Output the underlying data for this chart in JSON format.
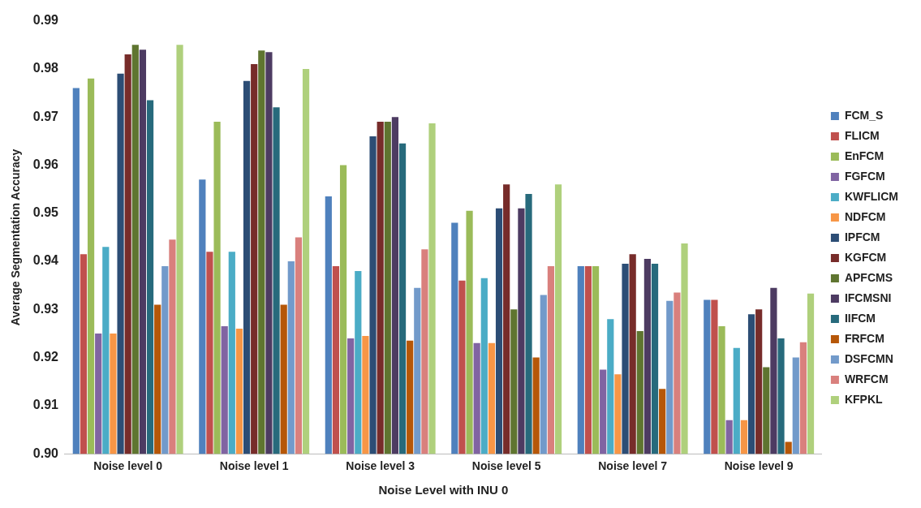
{
  "chart_data": {
    "type": "bar",
    "xlabel": "Noise Level with INU 0",
    "ylabel": "Average Segmentation Accuracy",
    "categories": [
      "Noise level 0",
      "Noise level 1",
      "Noise level 3",
      "Noise level 5",
      "Noise level 7",
      "Noise level 9"
    ],
    "series": [
      {
        "name": "FCM_S",
        "color": "#4f81bd",
        "values": [
          0.976,
          0.957,
          0.9535,
          0.948,
          0.939,
          0.932
        ]
      },
      {
        "name": "FLICM",
        "color": "#c0504d",
        "values": [
          0.9415,
          0.942,
          0.939,
          0.936,
          0.939,
          0.932
        ]
      },
      {
        "name": "EnFCM",
        "color": "#9bbb59",
        "values": [
          0.978,
          0.969,
          0.96,
          0.9505,
          0.939,
          0.9265
        ]
      },
      {
        "name": "FGFCM",
        "color": "#8064a2",
        "values": [
          0.925,
          0.9265,
          0.924,
          0.923,
          0.9175,
          0.907
        ]
      },
      {
        "name": "KWFLICM",
        "color": "#4bacc6",
        "values": [
          0.943,
          0.942,
          0.938,
          0.9365,
          0.928,
          0.922
        ]
      },
      {
        "name": "NDFCM",
        "color": "#f79646",
        "values": [
          0.925,
          0.926,
          0.9245,
          0.923,
          0.9165,
          0.907
        ]
      },
      {
        "name": "IPFCM",
        "color": "#2c4d75",
        "values": [
          0.979,
          0.9775,
          0.966,
          0.951,
          0.9395,
          0.929
        ]
      },
      {
        "name": "KGFCM",
        "color": "#772c2a",
        "values": [
          0.983,
          0.981,
          0.969,
          0.956,
          0.9415,
          0.93
        ]
      },
      {
        "name": "APFCMS",
        "color": "#5f7530",
        "values": [
          0.985,
          0.9838,
          0.969,
          0.93,
          0.9255,
          0.918
        ]
      },
      {
        "name": "IFCMSNI",
        "color": "#4d3b62",
        "values": [
          0.984,
          0.9835,
          0.97,
          0.951,
          0.9405,
          0.9345
        ]
      },
      {
        "name": "IIFCM",
        "color": "#276a7c",
        "values": [
          0.9735,
          0.972,
          0.9645,
          0.954,
          0.9395,
          0.924
        ]
      },
      {
        "name": "FRFCM",
        "color": "#b65708",
        "values": [
          0.931,
          0.931,
          0.9235,
          0.92,
          0.9135,
          0.9025
        ]
      },
      {
        "name": "DSFCMN",
        "color": "#729aca",
        "values": [
          0.939,
          0.94,
          0.9345,
          0.933,
          0.9318,
          0.92
        ]
      },
      {
        "name": "WRFCM",
        "color": "#d9807d",
        "values": [
          0.9445,
          0.945,
          0.9425,
          0.939,
          0.9335,
          0.9232
        ]
      },
      {
        "name": "KFPKL",
        "color": "#afd07c",
        "values": [
          0.985,
          0.98,
          0.9687,
          0.956,
          0.9437,
          0.9333
        ]
      }
    ],
    "ylim": [
      0.9,
      0.99
    ],
    "yticks": [
      {
        "value": 0.9,
        "label": "0.90"
      },
      {
        "value": 0.91,
        "label": "0.91"
      },
      {
        "value": 0.92,
        "label": "0.92"
      },
      {
        "value": 0.93,
        "label": "0.93"
      },
      {
        "value": 0.94,
        "label": "0.94"
      },
      {
        "value": 0.95,
        "label": "0.95"
      },
      {
        "value": 0.96,
        "label": "0.96"
      },
      {
        "value": 0.97,
        "label": "0.97"
      },
      {
        "value": 0.98,
        "label": "0.98"
      },
      {
        "value": 0.99,
        "label": "0.99"
      }
    ],
    "grid": false,
    "legend": "right"
  }
}
